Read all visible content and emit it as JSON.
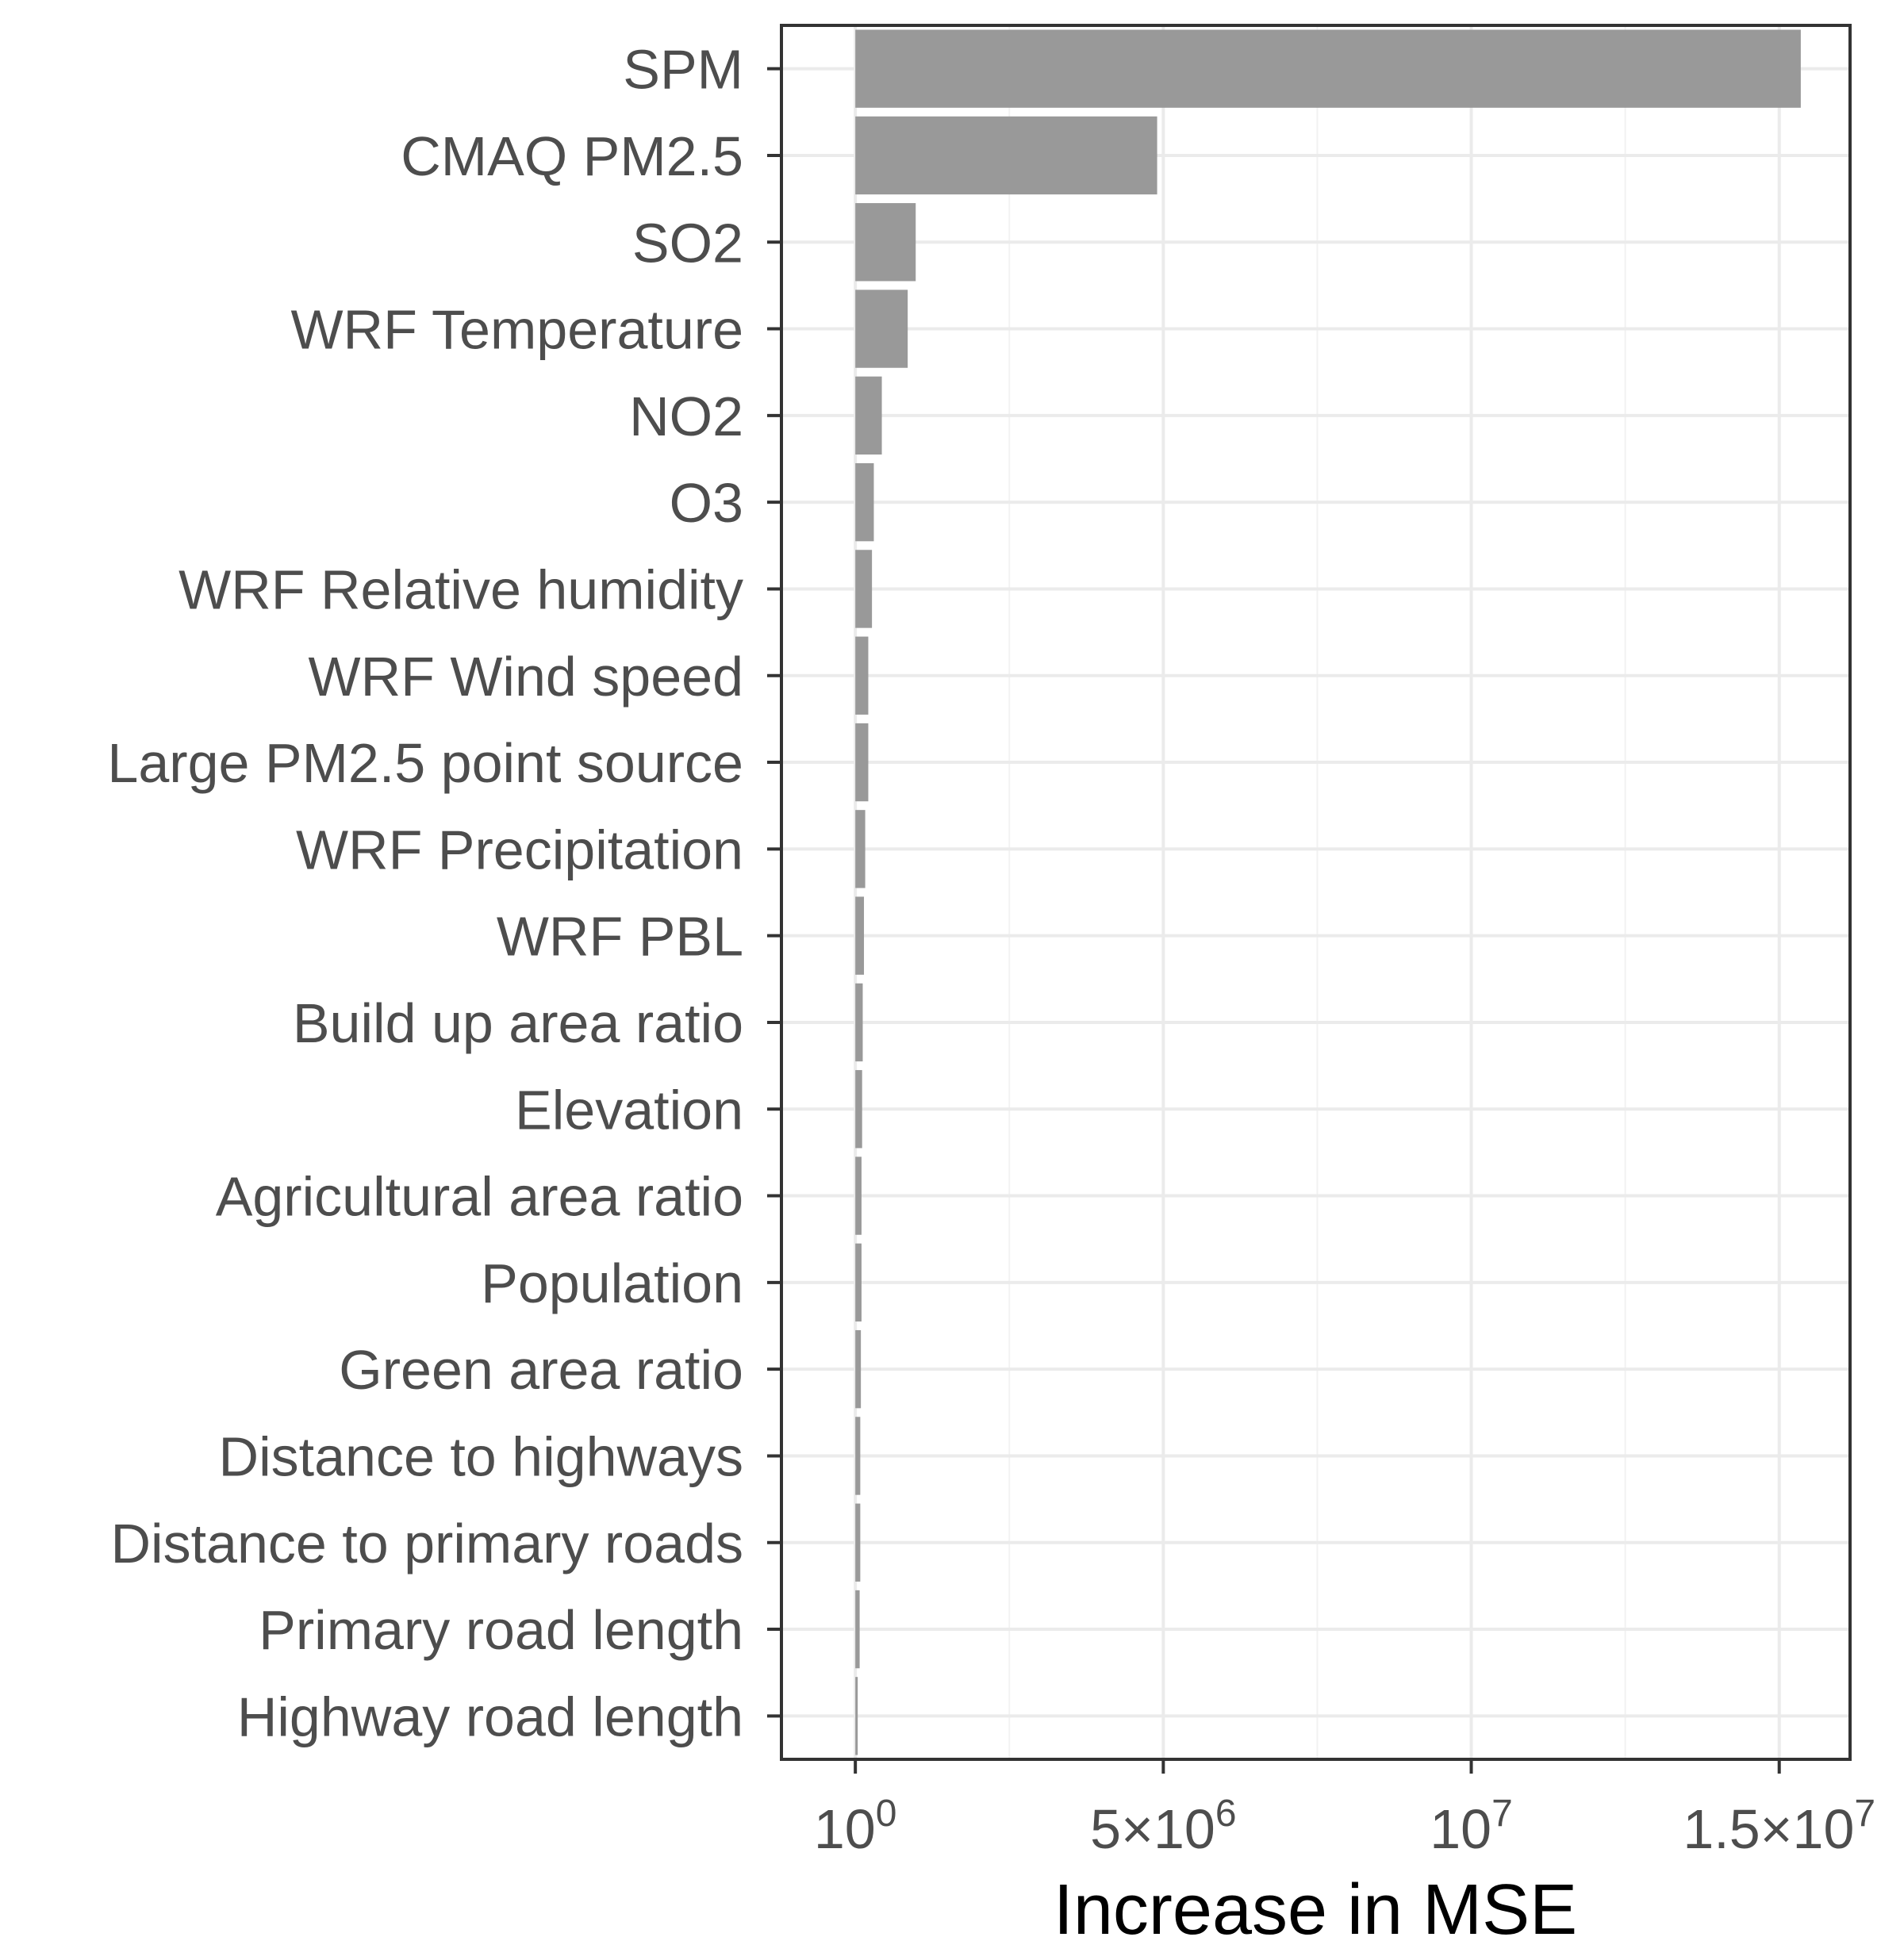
{
  "chart_data": {
    "type": "bar",
    "orientation": "horizontal",
    "title": "",
    "xlabel": "Increase in MSE",
    "ylabel": "",
    "xlim": [
      -1200000,
      16150000
    ],
    "grid": true,
    "legend": "none",
    "x_ticks": [
      {
        "value": 0,
        "base": "10",
        "exp": "0"
      },
      {
        "value": 5000000,
        "base": "5×10",
        "exp": "6"
      },
      {
        "value": 10000000,
        "base": "10",
        "exp": "7"
      },
      {
        "value": 15000000,
        "base": "1.5×10",
        "exp": "7"
      }
    ],
    "categories": [
      "SPM",
      "CMAQ PM2.5",
      "SO2",
      "WRF Temperature",
      "NO2",
      "O3",
      "WRF Relative humidity",
      "WRF Wind speed",
      "Large PM2.5 point source",
      "WRF Precipitation",
      "WRF PBL",
      "Build up area ratio",
      "Elevation",
      "Agricultural area ratio",
      "Population",
      "Green area ratio",
      "Distance to highways",
      "Distance to primary roads",
      "Primary road length",
      "Highway road length"
    ],
    "values": [
      15350000,
      4900000,
      980000,
      850000,
      430000,
      300000,
      270000,
      210000,
      210000,
      160000,
      140000,
      120000,
      110000,
      100000,
      100000,
      90000,
      80000,
      80000,
      70000,
      20000
    ],
    "bar_color": "#999999"
  }
}
